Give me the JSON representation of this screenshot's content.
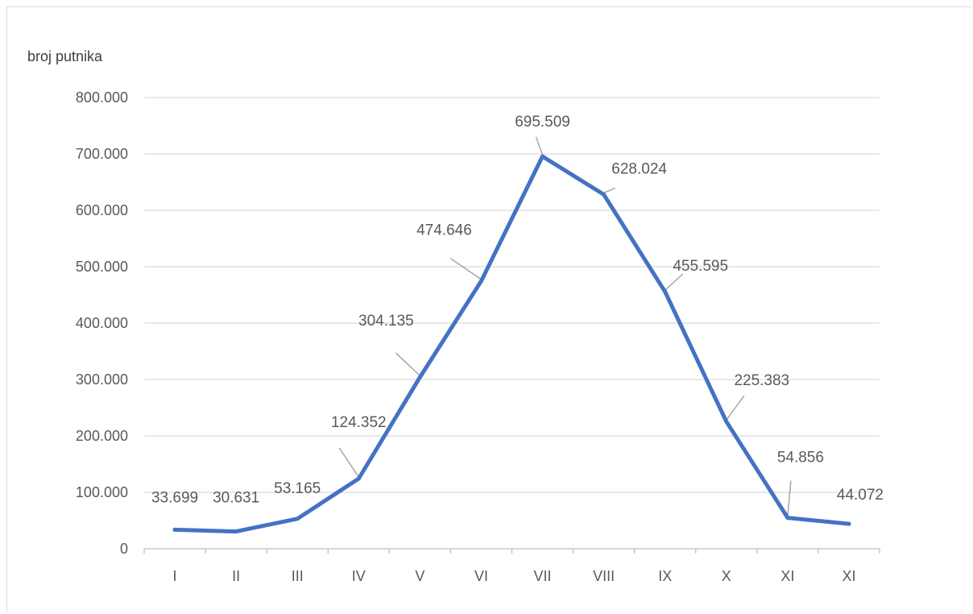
{
  "chart_data": {
    "type": "line",
    "title": "",
    "ylabel": "broj putnika",
    "xlabel": "",
    "categories": [
      "I",
      "II",
      "III",
      "IV",
      "V",
      "VI",
      "VII",
      "VIII",
      "IX",
      "X",
      "XI",
      "XI"
    ],
    "series": [
      {
        "values": [
          33699,
          30631,
          53165,
          124352,
          304135,
          474646,
          695509,
          628024,
          455595,
          225383,
          54856,
          44072
        ]
      }
    ],
    "data_labels": [
      "33.699",
      "30.631",
      "53.165",
      "124.352",
      "304.135",
      "474.646",
      "695.509",
      "628.024",
      "455.595",
      "225.383",
      "54.856",
      "44.072"
    ],
    "y_tick_labels": [
      "0",
      "100.000",
      "200.000",
      "300.000",
      "400.000",
      "500.000",
      "600.000",
      "700.000",
      "800.000"
    ],
    "y_ticks": [
      0,
      100000,
      200000,
      300000,
      400000,
      500000,
      600000,
      700000,
      800000
    ],
    "ylim": [
      0,
      800000
    ],
    "grid": true,
    "legend": "none",
    "colors": {
      "line": "#4472c4",
      "grid": "#d9d9d9",
      "axis": "#bfbfbf",
      "text": "#595959",
      "leader": "#a6a6a6"
    }
  }
}
